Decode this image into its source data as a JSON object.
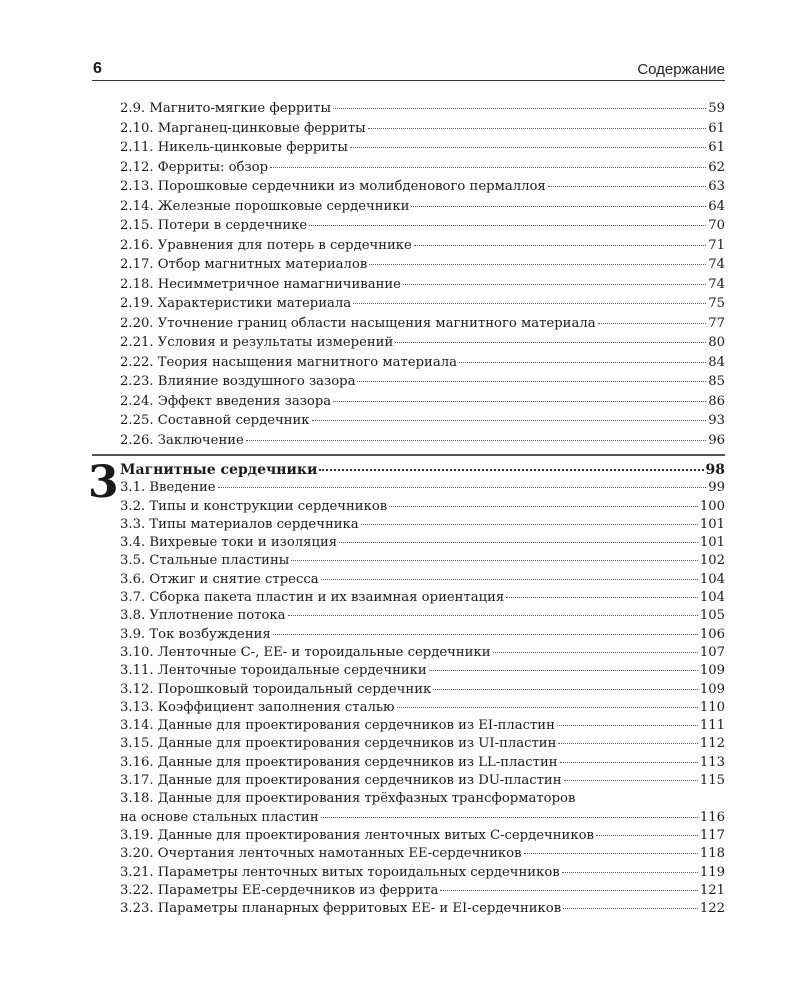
{
  "header": {
    "page_number": "6",
    "running_title": "Содержание"
  },
  "section2": [
    {
      "title": "2.9. Магнито-мягкие ферриты",
      "page": "59"
    },
    {
      "title": "2.10. Марганец-цинковые ферриты",
      "page": "61"
    },
    {
      "title": "2.11. Никель-цинковые ферриты",
      "page": "61"
    },
    {
      "title": "2.12. Ферриты: обзор",
      "page": "62"
    },
    {
      "title": "2.13. Порошковые сердечники из молибденового пермаллоя",
      "page": "63"
    },
    {
      "title": "2.14. Железные порошковые сердечники",
      "page": "64"
    },
    {
      "title": "2.15. Потери в сердечнике",
      "page": "70"
    },
    {
      "title": "2.16. Уравнения для потерь в сердечнике",
      "page": "71"
    },
    {
      "title": "2.17. Отбор магнитных материалов",
      "page": "74"
    },
    {
      "title": "2.18. Несимметричное намагничивание",
      "page": "74"
    },
    {
      "title": "2.19. Характеристики материала",
      "page": "75"
    },
    {
      "title": "2.20. Уточнение границ области насыщения магнитного материала",
      "page": "77"
    },
    {
      "title": "2.21. Условия и результаты измерений",
      "page": "80"
    },
    {
      "title": "2.22. Теория насыщения магнитного материала",
      "page": "84"
    },
    {
      "title": "2.23. Влияние воздушного зазора",
      "page": "85"
    },
    {
      "title": "2.24. Эффект введения зазора",
      "page": "86"
    },
    {
      "title": "2.25. Составной сердечник",
      "page": "93"
    },
    {
      "title": "2.26. Заключение",
      "page": "96"
    }
  ],
  "chapter3": {
    "number": "3",
    "title": "Магнитные сердечники",
    "page": "98",
    "entries": [
      {
        "title": "3.1. Введение",
        "page": "99"
      },
      {
        "title": "3.2. Типы и конструкции сердечников",
        "page": "100"
      },
      {
        "title": "3.3. Типы материалов сердечника",
        "page": "101"
      },
      {
        "title": "3.4. Вихревые токи и изоляция",
        "page": "101"
      },
      {
        "title": "3.5. Стальные пластины",
        "page": "102"
      },
      {
        "title": "3.6. Отжиг и снятие стресса",
        "page": "104"
      },
      {
        "title": "3.7. Сборка пакета пластин и их взаимная ориентация",
        "page": "104"
      },
      {
        "title": "3.8. Уплотнение потока",
        "page": "105"
      },
      {
        "title": "3.9. Ток возбуждения",
        "page": "106"
      },
      {
        "title": "3.10. Ленточные С-, ЕЕ- и тороидальные сердечники",
        "page": "107"
      },
      {
        "title": "3.11. Ленточные тороидальные сердечники",
        "page": "109"
      },
      {
        "title": "3.12. Порошковый тороидальный сердечник",
        "page": "109"
      },
      {
        "title": "3.13. Коэффициент заполнения сталью",
        "page": "110"
      },
      {
        "title": "3.14. Данные для проектирования сердечников из EI-пластин",
        "page": "111"
      },
      {
        "title": "3.15. Данные для проектирования сердечников из UI-пластин",
        "page": "112"
      },
      {
        "title": "3.16. Данные для проектирования сердечников из LL-пластин",
        "page": "113"
      },
      {
        "title": "3.17. Данные для проектирования сердечников из DU-пластин",
        "page": "115"
      },
      {
        "title": "3.18. Данные для проектирования трёхфазных трансформаторов",
        "continuation": "на основе стальных пластин",
        "page": "116"
      },
      {
        "title": "3.19. Данные для проектирования ленточных витых С-сердечников",
        "page": "117"
      },
      {
        "title": "3.20. Очертания ленточных намотанных ЕЕ-сердечников",
        "page": "118"
      },
      {
        "title": "3.21. Параметры ленточных витых тороидальных сердечников",
        "page": "119"
      },
      {
        "title": "3.22. Параметры ЕЕ-сердечников из феррита",
        "page": "121"
      },
      {
        "title": "3.23. Параметры планарных ферритовых ЕЕ- и EI-сердечников",
        "page": "122"
      }
    ]
  }
}
